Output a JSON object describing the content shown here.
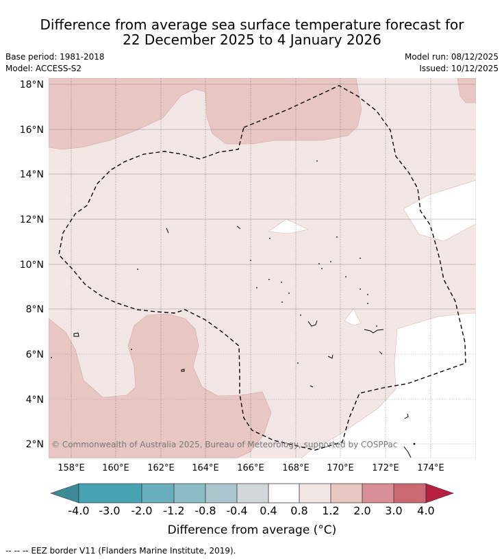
{
  "title": {
    "line1": "Difference from average sea surface temperature forecast for",
    "line2": "22 December 2025 to 4 January 2026"
  },
  "meta": {
    "base_period": "Base period: 1981-2018",
    "model": "Model: ACCESS-S2",
    "model_run": "Model run: 08/12/2025",
    "issued": "Issued: 10/12/2025"
  },
  "map": {
    "lat_labels": [
      "18°N",
      "16°N",
      "14°N",
      "12°N",
      "10°N",
      "8°N",
      "6°N",
      "4°N",
      "2°N"
    ],
    "lon_labels": [
      "158°E",
      "160°E",
      "162°E",
      "164°E",
      "166°E",
      "168°E",
      "170°E",
      "172°E",
      "174°E"
    ],
    "copyright": "© Commonwealth of Australia 2025, Bureau of Meteorology, supported by COSPPac"
  },
  "colorbar": {
    "labels": [
      "-4.0",
      "-3.0",
      "-2.0",
      "-1.2",
      "-0.8",
      "-0.4",
      "0.4",
      "0.8",
      "1.2",
      "2.0",
      "3.0",
      "4.0"
    ],
    "colors": [
      "#4aa3b5",
      "#6aafbd",
      "#8cbcc6",
      "#a9c7cc",
      "#d2d8da",
      "#ffffff",
      "#f3e7e6",
      "#e8c6c2",
      "#d98f98",
      "#cc6a74",
      "#c24455"
    ],
    "low_extend_color": "#3d8a97",
    "high_extend_color": "#b5203e",
    "title": "Difference from average (°C)"
  },
  "footnote": "-- -- -- EEZ border V11 (Flanders Marine Institute, 2019)."
}
